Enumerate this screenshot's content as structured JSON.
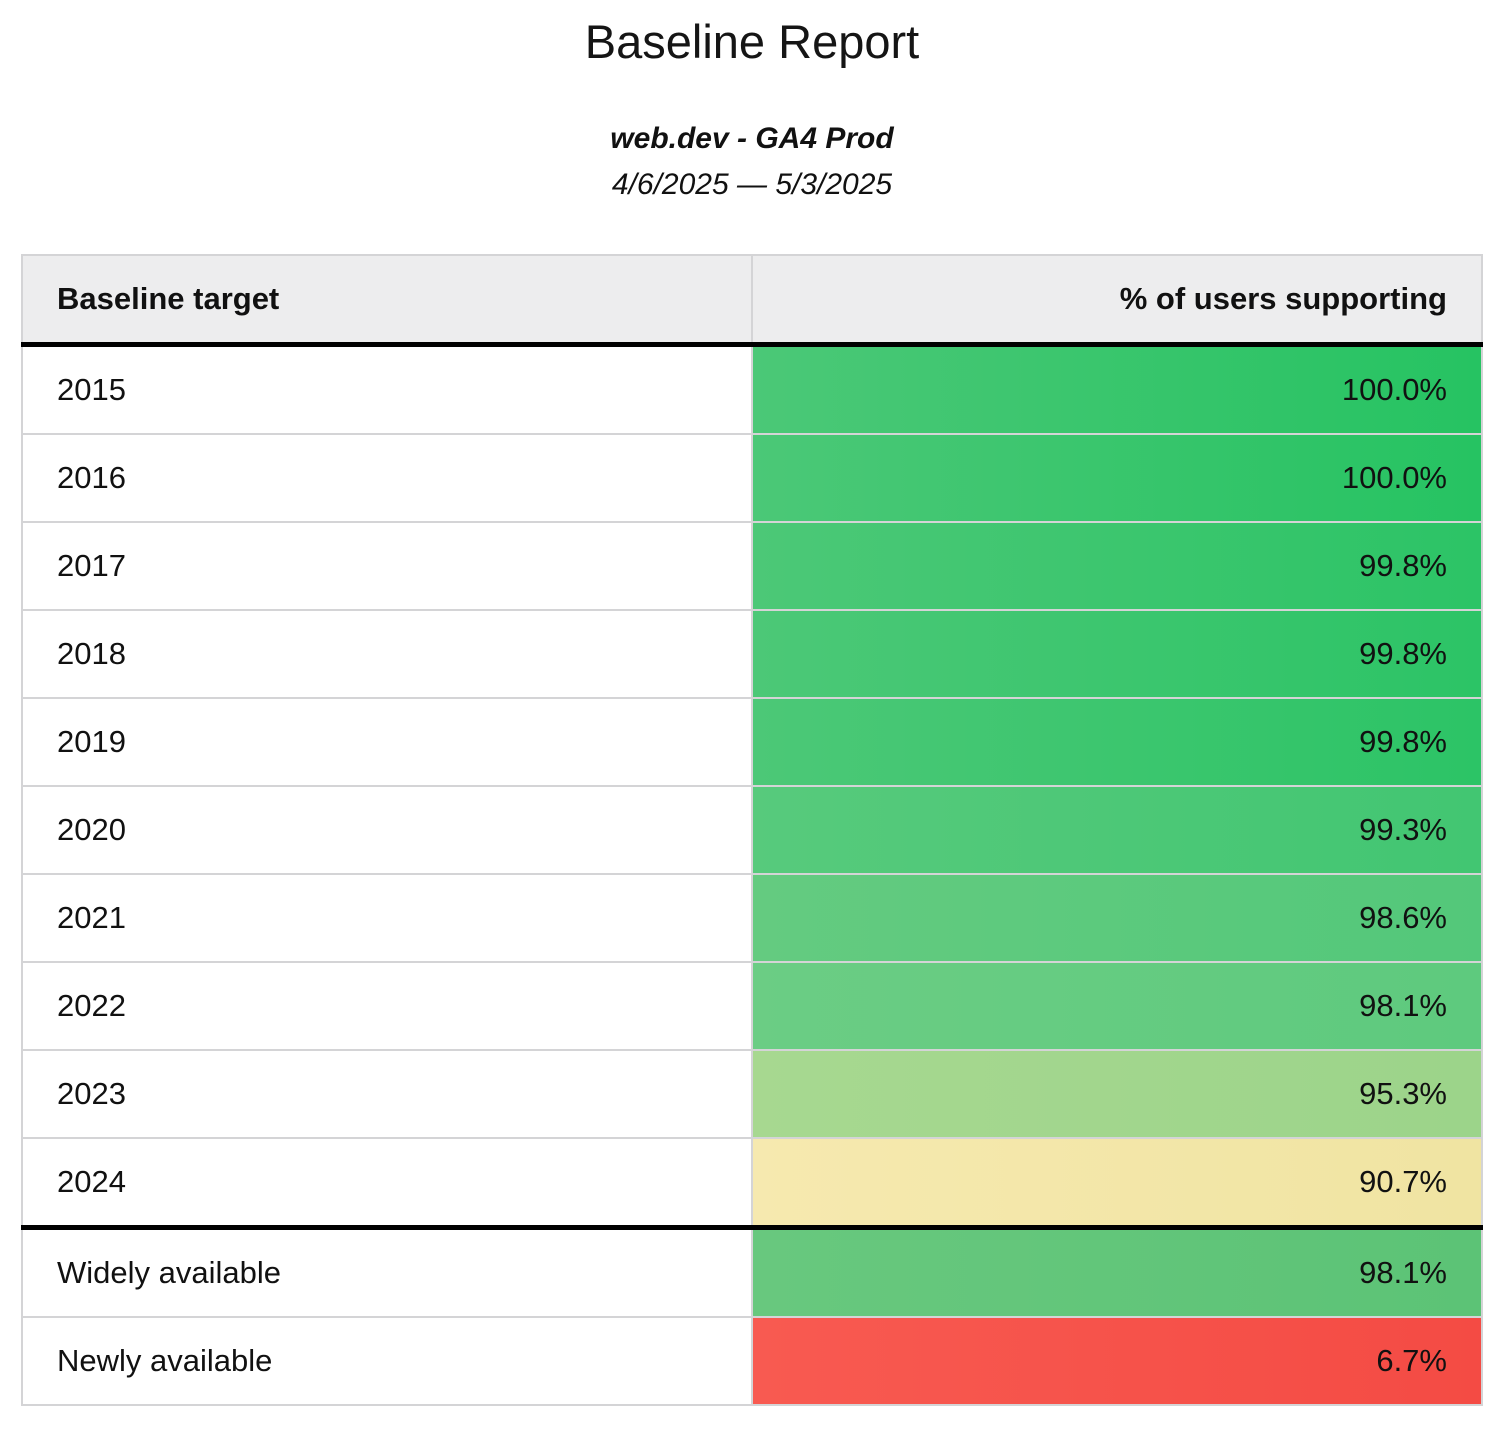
{
  "report": {
    "title": "Baseline Report",
    "subtitle": "web.dev - GA4 Prod",
    "date_range": "4/6/2025 — 5/3/2025"
  },
  "table": {
    "header": {
      "target": "Baseline target",
      "value": "% of users supporting"
    },
    "rows": [
      {
        "target": "2015",
        "value": "100.0%",
        "color_start": "#4bc877",
        "color_end": "#26c362",
        "divider_after": false
      },
      {
        "target": "2016",
        "value": "100.0%",
        "color_start": "#4bc877",
        "color_end": "#26c362",
        "divider_after": false
      },
      {
        "target": "2017",
        "value": "99.8%",
        "color_start": "#4cc877",
        "color_end": "#2cc466",
        "divider_after": false
      },
      {
        "target": "2018",
        "value": "99.8%",
        "color_start": "#4cc877",
        "color_end": "#2cc466",
        "divider_after": false
      },
      {
        "target": "2019",
        "value": "99.8%",
        "color_start": "#4cc877",
        "color_end": "#2cc466",
        "divider_after": false
      },
      {
        "target": "2020",
        "value": "99.3%",
        "color_start": "#57ca7c",
        "color_end": "#42c672",
        "divider_after": false
      },
      {
        "target": "2021",
        "value": "98.6%",
        "color_start": "#64cb80",
        "color_end": "#53c87a",
        "divider_after": false
      },
      {
        "target": "2022",
        "value": "98.1%",
        "color_start": "#6bcd84",
        "color_end": "#5eca7e",
        "divider_after": false
      },
      {
        "target": "2023",
        "value": "95.3%",
        "color_start": "#a7d890",
        "color_end": "#9cd48a",
        "divider_after": false
      },
      {
        "target": "2024",
        "value": "90.7%",
        "color_start": "#f6e9af",
        "color_end": "#f0e4a2",
        "divider_after": true
      },
      {
        "target": "Widely available",
        "value": "98.1%",
        "color_start": "#68c87e",
        "color_end": "#5cc376",
        "divider_after": false
      },
      {
        "target": "Newly available",
        "value": "6.7%",
        "color_start": "#f85a51",
        "color_end": "#f44b44",
        "divider_after": false
      }
    ],
    "colors": {
      "header_background": "#ededee",
      "grid_border": "#d4d4d6",
      "group_divider": "#000000",
      "high_support_green": "#2cc466",
      "mid_support_green": "#9cd48a",
      "warning_yellow": "#f0e4a2",
      "low_support_red": "#f44b44"
    }
  }
}
